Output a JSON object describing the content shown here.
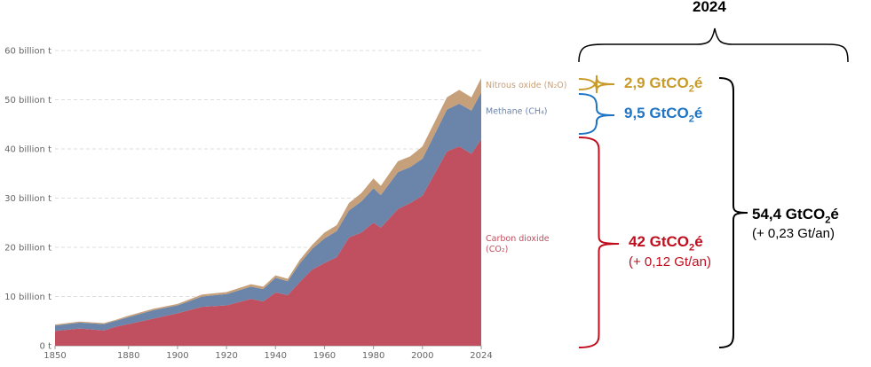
{
  "chart_data": {
    "type": "area",
    "stacked": true,
    "title": "",
    "xlabel": "",
    "ylabel": "",
    "xlim": [
      1850,
      2024
    ],
    "ylim": [
      0,
      60
    ],
    "grid": true,
    "x_ticks": [
      "1850",
      "1880",
      "1900",
      "1920",
      "1940",
      "1960",
      "1980",
      "2000",
      "2024"
    ],
    "y_ticks": [
      {
        "value": 0,
        "label": "0 t"
      },
      {
        "value": 10,
        "label": "10 billion t"
      },
      {
        "value": 20,
        "label": "20 billion t"
      },
      {
        "value": 30,
        "label": "30 billion t"
      },
      {
        "value": 40,
        "label": "40 billion t"
      },
      {
        "value": 50,
        "label": "50 billion t"
      },
      {
        "value": 60,
        "label": "60 billion t"
      }
    ],
    "x": [
      1850,
      1860,
      1870,
      1875,
      1880,
      1890,
      1900,
      1910,
      1920,
      1930,
      1935,
      1940,
      1945,
      1950,
      1955,
      1960,
      1965,
      1970,
      1975,
      1980,
      1983,
      1990,
      1995,
      2000,
      2005,
      2010,
      2015,
      2020,
      2024
    ],
    "series": [
      {
        "name": "Carbon dioxide",
        "formula": "(CO₂)",
        "color": "#c0505f",
        "values": [
          3.0,
          3.5,
          3.1,
          3.9,
          4.4,
          5.5,
          6.6,
          7.9,
          8.2,
          9.5,
          9.0,
          10.8,
          10.3,
          13.0,
          15.5,
          16.8,
          18.0,
          22.0,
          23.0,
          25.0,
          24.0,
          27.8,
          29.0,
          30.5,
          35.0,
          39.5,
          40.5,
          39.0,
          42.0
        ]
      },
      {
        "name": "Methane (CH₄)",
        "color": "#6a84aa",
        "values": [
          1.1,
          1.2,
          1.3,
          1.2,
          1.4,
          1.7,
          1.6,
          2.1,
          2.3,
          2.5,
          2.5,
          3.0,
          2.8,
          3.8,
          4.2,
          5.0,
          5.3,
          5.5,
          6.3,
          7.0,
          6.6,
          7.5,
          7.3,
          7.5,
          8.0,
          8.5,
          8.7,
          8.8,
          9.5
        ]
      },
      {
        "name": "Nitrous oxide (N₂O)",
        "color": "#c6a07a",
        "values": [
          0.2,
          0.2,
          0.2,
          0.2,
          0.3,
          0.3,
          0.3,
          0.4,
          0.4,
          0.5,
          0.5,
          0.5,
          0.5,
          0.7,
          0.8,
          1.2,
          1.2,
          1.5,
          1.7,
          2.0,
          1.9,
          2.2,
          2.2,
          2.5,
          2.5,
          2.5,
          2.8,
          2.7,
          2.9
        ]
      }
    ]
  },
  "annotations": {
    "year": "2024",
    "n2o": {
      "value": "2,9 GtCO",
      "sub": "2",
      "suffix": "é",
      "color": "#c89a2a"
    },
    "ch4": {
      "value": "9,5 GtCO",
      "sub": "2",
      "suffix": "é",
      "color": "#1f74c4"
    },
    "co2": {
      "value": "42 GtCO",
      "sub": "2",
      "suffix": "é",
      "trend": "(+ 0,12 Gt/an)",
      "color": "#c00d1e"
    },
    "total": {
      "value": "54,4 GtCO",
      "sub": "2",
      "suffix": "é",
      "trend": "(+ 0,23 Gt/an)",
      "color": "#000000"
    }
  }
}
